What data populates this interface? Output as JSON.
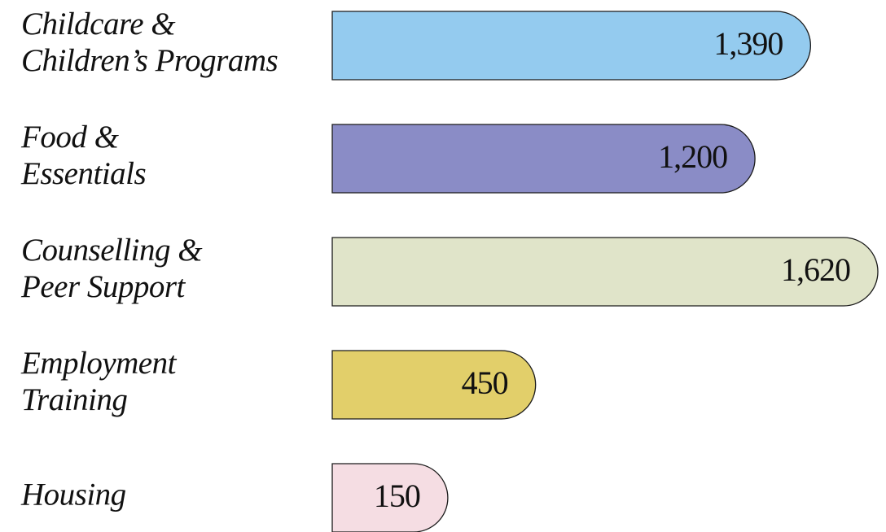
{
  "chart_data": {
    "type": "bar",
    "orientation": "horizontal",
    "categories": [
      "Childcare &\nChildren’s Programs",
      "Food &\nEssentials",
      "Counselling &\nPeer Support",
      "Employment\nTraining",
      "Housing"
    ],
    "values": [
      1390,
      1200,
      1620,
      450,
      150
    ],
    "value_labels": [
      "1,390",
      "1,200",
      "1,620",
      "450",
      "150"
    ],
    "colors": [
      "#94cbef",
      "#8a8cc6",
      "#e0e4c9",
      "#e2cf6a",
      "#f5dde3"
    ],
    "xlim": [
      -245,
      1620
    ]
  }
}
